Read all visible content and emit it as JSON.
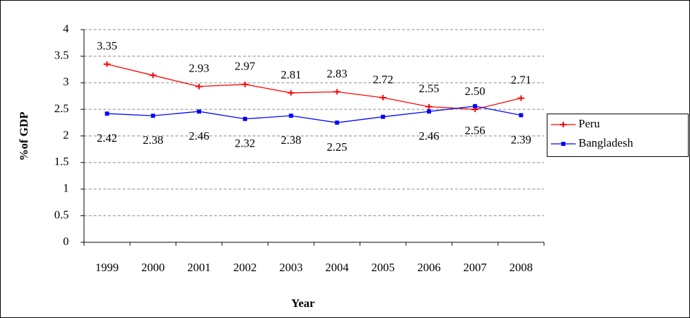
{
  "chart_data": {
    "type": "line",
    "x_label": "Year",
    "y_label": "%of GDP",
    "categories": [
      "1999",
      "2000",
      "2001",
      "2002",
      "2003",
      "2004",
      "2005",
      "2006",
      "2007",
      "2008"
    ],
    "series": [
      {
        "name": "Peru",
        "color": "#ff0000",
        "marker": "cross",
        "values": [
          3.35,
          3.14,
          2.93,
          2.97,
          2.81,
          2.83,
          2.72,
          2.55,
          2.5,
          2.71
        ],
        "value_labels": [
          "3.35",
          null,
          "2.93",
          "2.97",
          "2.81",
          "2.83",
          "2.72",
          "2.55",
          "2.50",
          "2.71"
        ]
      },
      {
        "name": "Bangladesh",
        "color": "#0000ff",
        "marker": "square",
        "values": [
          2.42,
          2.38,
          2.46,
          2.32,
          2.38,
          2.25,
          2.36,
          2.46,
          2.56,
          2.39
        ],
        "value_labels": [
          "2.42",
          "2.38",
          "2.46",
          "2.32",
          "2.38",
          "2.25",
          null,
          "2.46",
          "2.56",
          "2.39"
        ]
      }
    ],
    "ylim": [
      0,
      4
    ],
    "yticks": [
      0,
      0.5,
      1,
      1.5,
      2,
      2.5,
      3,
      3.5,
      4
    ],
    "grid": true,
    "legend": "right"
  }
}
